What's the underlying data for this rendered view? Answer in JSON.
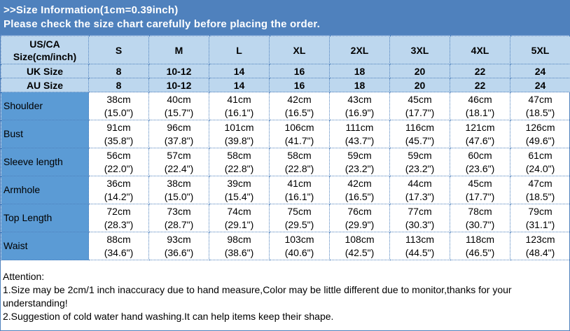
{
  "title": {
    "line1": ">>Size Information(1cm=0.39inch)",
    "line2": "Please check the size chart carefully before placing the order."
  },
  "header": {
    "us_label_1": "US/CA",
    "us_label_2": "Size(cm/inch)",
    "sizes": [
      "S",
      "M",
      "L",
      "XL",
      "2XL",
      "3XL",
      "4XL",
      "5XL"
    ],
    "uk_label": "UK Size",
    "uk": [
      "8",
      "10-12",
      "14",
      "16",
      "18",
      "20",
      "22",
      "24"
    ],
    "au_label": "AU Size",
    "au": [
      "8",
      "10-12",
      "14",
      "16",
      "18",
      "20",
      "22",
      "24"
    ]
  },
  "rows": [
    {
      "label": "Shoulder",
      "cm": [
        "38cm",
        "40cm",
        "41cm",
        "42cm",
        "43cm",
        "45cm",
        "46cm",
        "47cm"
      ],
      "in": [
        "(15.0\")",
        "(15.7\")",
        "(16.1\")",
        "(16.5\")",
        "(16.9\")",
        "(17.7\")",
        "(18.1\")",
        "(18.5\")"
      ]
    },
    {
      "label": "Bust",
      "cm": [
        "91cm",
        "96cm",
        "101cm",
        "106cm",
        "111cm",
        "116cm",
        "121cm",
        "126cm"
      ],
      "in": [
        "(35.8\")",
        "(37.8\")",
        "(39.8\")",
        "(41.7\")",
        "(43.7\")",
        "(45.7\")",
        "(47.6\")",
        "(49.6\")"
      ]
    },
    {
      "label": "Sleeve length",
      "cm": [
        "56cm",
        "57cm",
        "58cm",
        "58cm",
        "59cm",
        "59cm",
        "60cm",
        "61cm"
      ],
      "in": [
        "(22.0\")",
        "(22.4\")",
        "(22.8\")",
        "(22.8\")",
        "(23.2\")",
        "(23.2\")",
        "(23.6\")",
        "(24.0\")"
      ]
    },
    {
      "label": "Armhole",
      "cm": [
        "36cm",
        "38cm",
        "39cm",
        "41cm",
        "42cm",
        "44cm",
        "45cm",
        "47cm"
      ],
      "in": [
        "(14.2\")",
        "(15.0\")",
        "(15.4\")",
        "(16.1\")",
        "(16.5\")",
        "(17.3\")",
        "(17.7\")",
        "(18.5\")"
      ]
    },
    {
      "label": "Top Length",
      "cm": [
        "72cm",
        "73cm",
        "74cm",
        "75cm",
        "76cm",
        "77cm",
        "78cm",
        "79cm"
      ],
      "in": [
        "(28.3\")",
        "(28.7\")",
        "(29.1\")",
        "(29.5\")",
        "(29.9\")",
        "(30.3\")",
        "(30.7\")",
        "(31.1\")"
      ]
    },
    {
      "label": "Waist",
      "cm": [
        "88cm",
        "93cm",
        "98cm",
        "103cm",
        "108cm",
        "113cm",
        "118cm",
        "123cm"
      ],
      "in": [
        "(34.6\")",
        "(36.6\")",
        "(38.6\")",
        "(40.6\")",
        "(42.5\")",
        "(44.5\")",
        "(46.5\")",
        "(48.4\")"
      ]
    }
  ],
  "attention": {
    "heading": "Attention:",
    "line1": "1.Size may be 2cm/1 inch inaccuracy due to hand measure,Color may be little different due to monitor,thanks for your understanding!",
    "line2": "2.Suggestion of cold water hand washing.It can help items keep their shape."
  },
  "colors": {
    "title_bg": "#4f81bd",
    "header_bg": "#bdd7ee",
    "label_bg": "#5b9bd5"
  }
}
